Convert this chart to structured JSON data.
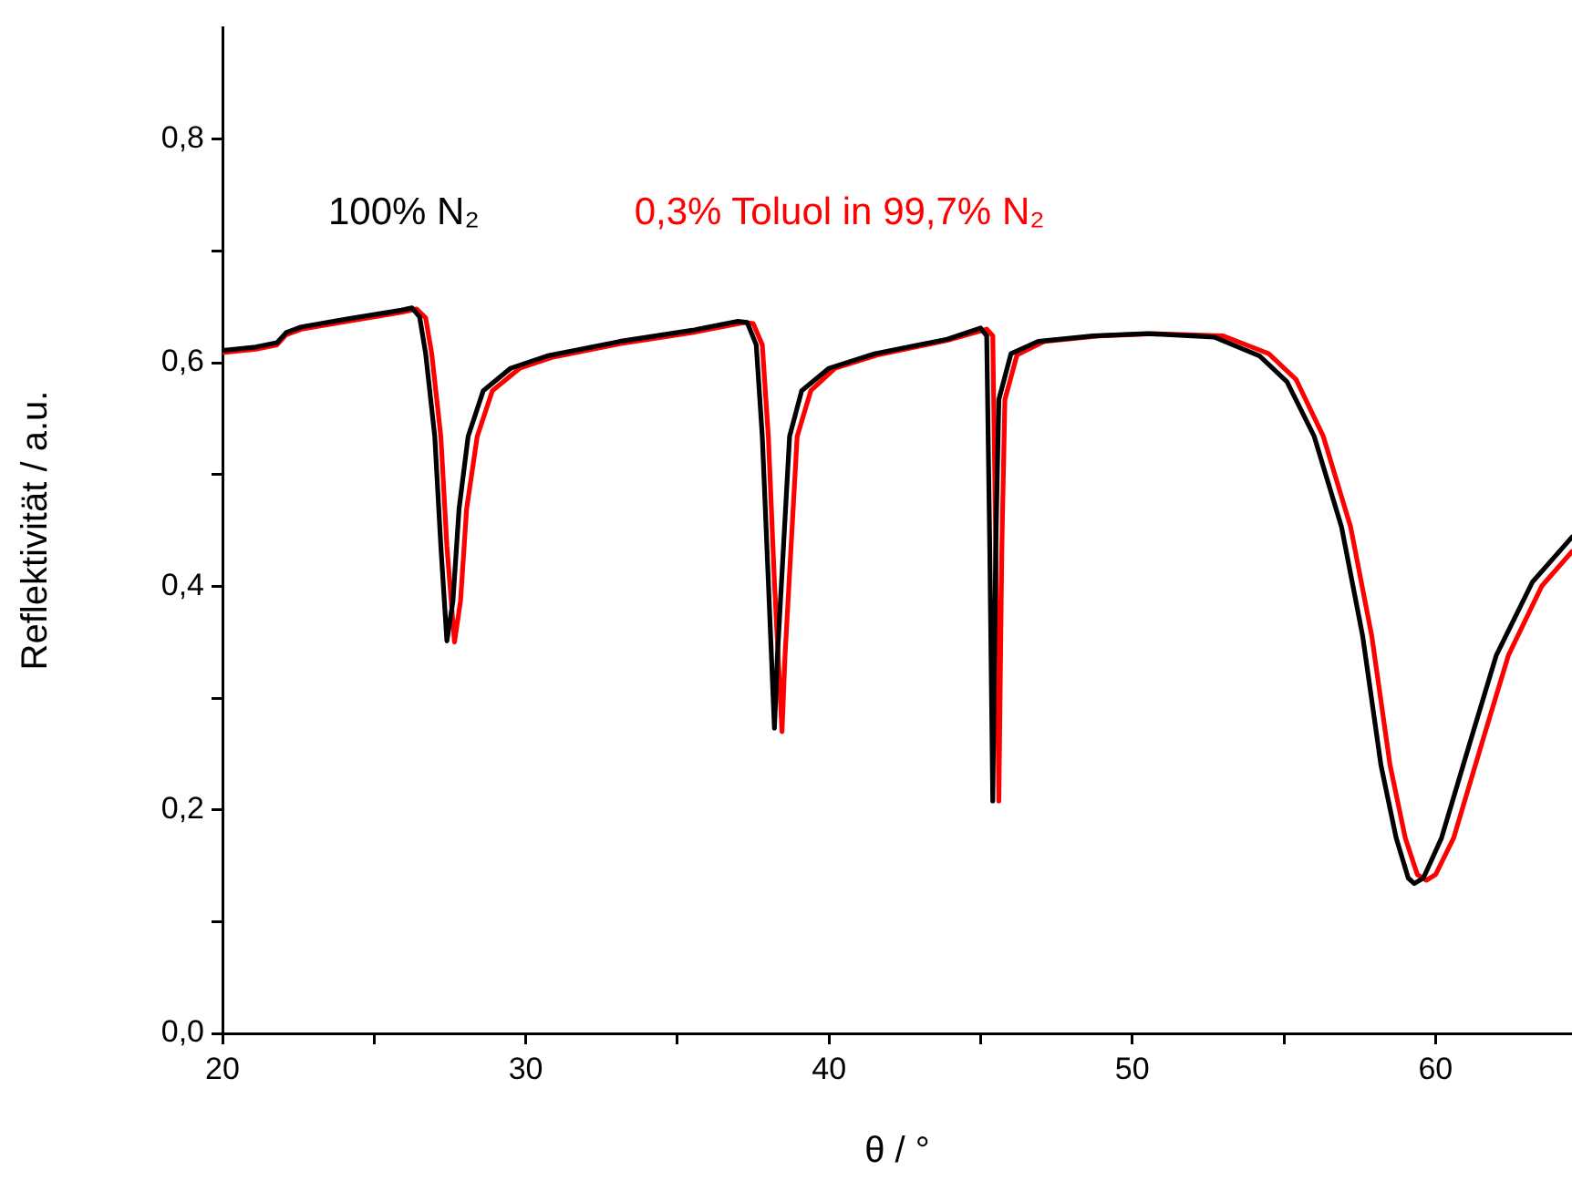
{
  "chart_data": {
    "type": "line",
    "xlabel": "θ / °",
    "ylabel": "Reflektivität / a.u.",
    "xlim": [
      20,
      64.5
    ],
    "ylim": [
      0,
      0.9
    ],
    "xticks": [
      20,
      {
        "value": 25,
        "label": null
      },
      30,
      {
        "value": 35,
        "label": null
      },
      40,
      {
        "value": 45,
        "label": null
      },
      50,
      {
        "value": 55,
        "label": null
      },
      60
    ],
    "yticks": [
      {
        "value": 0,
        "label": "0,0"
      },
      {
        "value": 0.1,
        "label": null
      },
      {
        "value": 0.2,
        "label": "0,2"
      },
      {
        "value": 0.3,
        "label": null
      },
      {
        "value": 0.4,
        "label": "0,4"
      },
      {
        "value": 0.5,
        "label": null
      },
      {
        "value": 0.6,
        "label": "0,6"
      },
      {
        "value": 0.7,
        "label": null
      },
      {
        "value": 0.8,
        "label": "0,8"
      }
    ],
    "grid": false,
    "legend": "top",
    "marker": "none",
    "line_style": "solid",
    "series": [
      {
        "name": "100% N₂",
        "color": "#000000",
        "x": [
          20,
          21.1,
          21.8,
          22.1,
          22.6,
          24.1,
          25.9,
          26.25,
          26.5,
          26.7,
          27.0,
          27.2,
          27.4,
          27.6,
          27.8,
          28.1,
          28.6,
          29.5,
          30.7,
          33.1,
          35.5,
          37.0,
          37.3,
          37.6,
          37.8,
          38.0,
          38.2,
          38.3,
          38.5,
          38.7,
          39.1,
          40.0,
          41.5,
          43.9,
          45.0,
          45.2,
          45.3,
          45.4,
          45.5,
          45.6,
          46.0,
          46.9,
          48.7,
          50.5,
          52.7,
          54.2,
          55.1,
          56.0,
          56.9,
          57.6,
          58.2,
          58.7,
          59.1,
          59.3,
          59.6,
          60.2,
          61.1,
          62.0,
          63.2,
          64.5
        ],
        "values": [
          0.611,
          0.614,
          0.618,
          0.627,
          0.632,
          0.639,
          0.647,
          0.649,
          0.641,
          0.608,
          0.534,
          0.436,
          0.351,
          0.387,
          0.469,
          0.534,
          0.575,
          0.595,
          0.606,
          0.619,
          0.629,
          0.637,
          0.636,
          0.616,
          0.534,
          0.404,
          0.273,
          0.338,
          0.436,
          0.534,
          0.575,
          0.595,
          0.608,
          0.621,
          0.631,
          0.624,
          0.436,
          0.208,
          0.436,
          0.567,
          0.608,
          0.619,
          0.624,
          0.626,
          0.623,
          0.606,
          0.583,
          0.534,
          0.453,
          0.355,
          0.24,
          0.175,
          0.139,
          0.134,
          0.139,
          0.175,
          0.257,
          0.338,
          0.404,
          0.444
        ]
      },
      {
        "name": "0,3% Toluol in 99,7% N₂",
        "color": "#ff0000",
        "x": [
          20,
          21.1,
          21.8,
          22.1,
          22.6,
          24.1,
          25.9,
          26.4,
          26.7,
          26.9,
          27.2,
          27.4,
          27.65,
          27.85,
          28.05,
          28.4,
          28.9,
          29.8,
          30.9,
          33.1,
          35.5,
          37.2,
          37.5,
          37.8,
          38.0,
          38.2,
          38.45,
          38.55,
          38.75,
          38.95,
          39.4,
          40.2,
          41.6,
          43.9,
          45.2,
          45.4,
          45.5,
          45.6,
          45.7,
          45.8,
          46.2,
          47.1,
          48.9,
          50.7,
          53.0,
          54.5,
          55.4,
          56.3,
          57.2,
          57.9,
          58.5,
          59.0,
          59.4,
          59.7,
          60.0,
          60.6,
          61.5,
          62.4,
          63.5,
          64.5
        ],
        "values": [
          0.609,
          0.612,
          0.616,
          0.625,
          0.63,
          0.637,
          0.645,
          0.648,
          0.64,
          0.608,
          0.534,
          0.436,
          0.35,
          0.387,
          0.469,
          0.534,
          0.575,
          0.595,
          0.605,
          0.617,
          0.627,
          0.636,
          0.635,
          0.616,
          0.534,
          0.404,
          0.27,
          0.338,
          0.436,
          0.534,
          0.575,
          0.595,
          0.607,
          0.62,
          0.63,
          0.624,
          0.436,
          0.208,
          0.436,
          0.567,
          0.607,
          0.619,
          0.624,
          0.626,
          0.624,
          0.608,
          0.585,
          0.534,
          0.453,
          0.355,
          0.24,
          0.175,
          0.142,
          0.137,
          0.142,
          0.175,
          0.257,
          0.338,
          0.4,
          0.431
        ]
      }
    ]
  }
}
